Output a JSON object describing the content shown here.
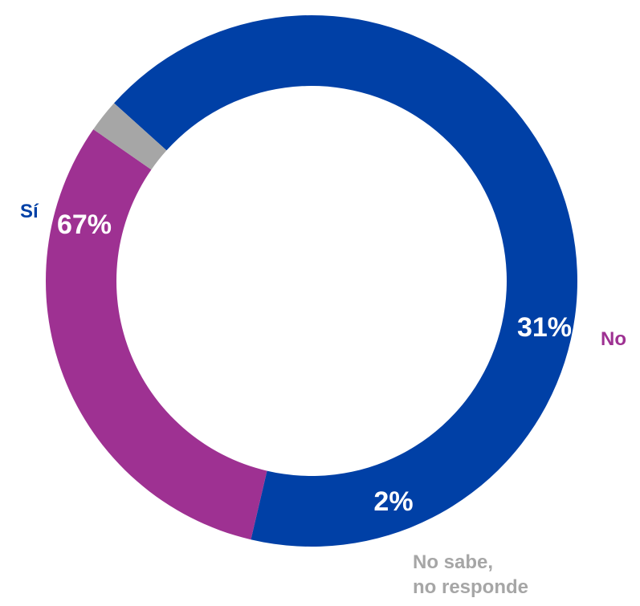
{
  "chart_data": {
    "type": "pie",
    "variant": "donut",
    "slices": [
      {
        "label": "Sí",
        "value": 67,
        "value_label": "67%",
        "color": "#0040A6"
      },
      {
        "label": "No",
        "value": 31,
        "value_label": "31%",
        "color": "#9E3192"
      },
      {
        "label": "No sabe,\nno responde",
        "label_lines": [
          "No sabe,",
          "no responde"
        ],
        "value": 2,
        "value_label": "2%",
        "color": "#A6A6A6"
      }
    ],
    "start_angle_deg": 0,
    "direction": "counterclockwise",
    "legend": "none"
  }
}
